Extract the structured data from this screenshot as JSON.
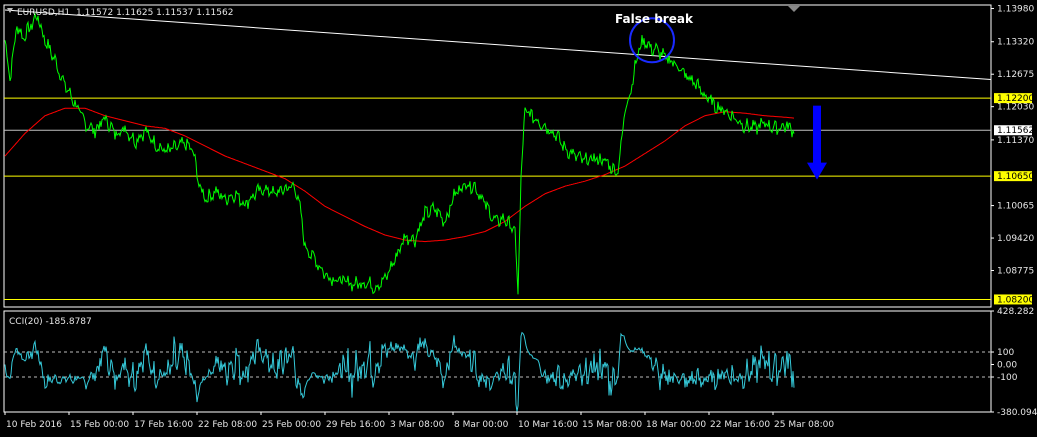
{
  "colors": {
    "background": "#000000",
    "price_line": "#00ff00",
    "moving_average": "#ff0000",
    "trendline": "#ffffff",
    "support_resistance": "#ffff00",
    "current_price_line": "#c0c0c0",
    "cci_line": "#35c9d9",
    "arrow": "#0000ff",
    "circle": "#1a2bff",
    "axis_border": "#ffffff",
    "label_badge_bg": "#ffff00",
    "label_badge_text": "#000000"
  },
  "header": {
    "symbol": "EURUSD,H1",
    "ohlc": "1.11572 1.11625 1.11537 1.11562"
  },
  "annotation": {
    "text": "False break",
    "icon": "circle-highlight",
    "arrow_icon": "down-arrow-icon"
  },
  "chart_data": [
    {
      "type": "line",
      "panel": "price",
      "ylim": [
        1.0805,
        1.1405
      ],
      "ytick_labels": [
        "1.13980",
        "1.13320",
        "1.12675",
        "1.12030",
        "1.11370",
        "1.10065",
        "1.09420",
        "1.08775"
      ],
      "ytick_values": [
        1.1398,
        1.1332,
        1.12675,
        1.1203,
        1.1137,
        1.10065,
        1.0942,
        1.08775
      ],
      "xtick_labels": [
        "10 Feb 2016",
        "15 Feb 00:00",
        "17 Feb 16:00",
        "22 Feb 08:00",
        "25 Feb 00:00",
        "29 Feb 16:00",
        "3 Mar 08:00",
        "8 Mar 00:00",
        "10 Mar 16:00",
        "15 Mar 08:00",
        "18 Mar 00:00",
        "22 Mar 16:00",
        "25 Mar 08:00"
      ],
      "xtick_index": [
        0,
        64,
        128,
        192,
        256,
        320,
        384,
        448,
        512,
        576,
        640,
        704,
        768
      ],
      "n_bars": 790,
      "price_anchors": [
        [
          0,
          1.1335
        ],
        [
          5,
          1.126
        ],
        [
          12,
          1.1365
        ],
        [
          18,
          1.134
        ],
        [
          25,
          1.136
        ],
        [
          32,
          1.1385
        ],
        [
          40,
          1.1335
        ],
        [
          50,
          1.1295
        ],
        [
          60,
          1.1245
        ],
        [
          70,
          1.121
        ],
        [
          80,
          1.117
        ],
        [
          90,
          1.1155
        ],
        [
          100,
          1.118
        ],
        [
          110,
          1.115
        ],
        [
          120,
          1.116
        ],
        [
          130,
          1.1135
        ],
        [
          140,
          1.1155
        ],
        [
          150,
          1.113
        ],
        [
          160,
          1.1115
        ],
        [
          170,
          1.112
        ],
        [
          180,
          1.113
        ],
        [
          188,
          1.1115
        ],
        [
          195,
          1.104
        ],
        [
          202,
          1.102
        ],
        [
          210,
          1.1035
        ],
        [
          220,
          1.102
        ],
        [
          230,
          1.103
        ],
        [
          240,
          1.101
        ],
        [
          250,
          1.103
        ],
        [
          260,
          1.104
        ],
        [
          270,
          1.103
        ],
        [
          280,
          1.104
        ],
        [
          290,
          1.1045
        ],
        [
          296,
          1.099
        ],
        [
          300,
          1.0925
        ],
        [
          310,
          1.09
        ],
        [
          320,
          1.087
        ],
        [
          330,
          1.086
        ],
        [
          340,
          1.0855
        ],
        [
          350,
          1.085
        ],
        [
          360,
          1.0855
        ],
        [
          370,
          1.0845
        ],
        [
          380,
          1.086
        ],
        [
          390,
          1.09
        ],
        [
          400,
          1.0945
        ],
        [
          410,
          1.094
        ],
        [
          420,
          1.099
        ],
        [
          430,
          1.1
        ],
        [
          440,
          1.0975
        ],
        [
          450,
          1.103
        ],
        [
          460,
          1.105
        ],
        [
          470,
          1.1045
        ],
        [
          480,
          1.101
        ],
        [
          490,
          1.0975
        ],
        [
          500,
          1.098
        ],
        [
          510,
          1.0955
        ],
        [
          513,
          1.083
        ],
        [
          516,
          1.106
        ],
        [
          520,
          1.1195
        ],
        [
          530,
          1.118
        ],
        [
          540,
          1.1165
        ],
        [
          550,
          1.115
        ],
        [
          560,
          1.112
        ],
        [
          570,
          1.1105
        ],
        [
          580,
          1.1095
        ],
        [
          590,
          1.11
        ],
        [
          600,
          1.1095
        ],
        [
          612,
          1.1072
        ],
        [
          616,
          1.112
        ],
        [
          620,
          1.12
        ],
        [
          625,
          1.123
        ],
        [
          630,
          1.128
        ],
        [
          635,
          1.1325
        ],
        [
          640,
          1.1335
        ],
        [
          645,
          1.132
        ],
        [
          652,
          1.1315
        ],
        [
          660,
          1.13
        ],
        [
          670,
          1.129
        ],
        [
          680,
          1.1265
        ],
        [
          690,
          1.125
        ],
        [
          700,
          1.1225
        ],
        [
          710,
          1.1205
        ],
        [
          720,
          1.1195
        ],
        [
          730,
          1.118
        ],
        [
          740,
          1.1165
        ],
        [
          750,
          1.116
        ],
        [
          760,
          1.117
        ],
        [
          770,
          1.116
        ],
        [
          780,
          1.1165
        ],
        [
          790,
          1.1156
        ]
      ],
      "moving_average_anchors": [
        [
          0,
          1.1105
        ],
        [
          20,
          1.115
        ],
        [
          40,
          1.1185
        ],
        [
          60,
          1.12
        ],
        [
          80,
          1.12
        ],
        [
          100,
          1.1185
        ],
        [
          120,
          1.1175
        ],
        [
          140,
          1.1165
        ],
        [
          160,
          1.116
        ],
        [
          180,
          1.1145
        ],
        [
          200,
          1.1125
        ],
        [
          220,
          1.1105
        ],
        [
          240,
          1.109
        ],
        [
          260,
          1.1075
        ],
        [
          280,
          1.106
        ],
        [
          300,
          1.1035
        ],
        [
          320,
          1.1005
        ],
        [
          340,
          1.0985
        ],
        [
          360,
          1.0965
        ],
        [
          380,
          1.0948
        ],
        [
          400,
          1.0938
        ],
        [
          420,
          1.0935
        ],
        [
          440,
          1.0938
        ],
        [
          460,
          1.0945
        ],
        [
          480,
          1.0955
        ],
        [
          500,
          1.0975
        ],
        [
          520,
          1.1005
        ],
        [
          540,
          1.103
        ],
        [
          560,
          1.1045
        ],
        [
          580,
          1.1055
        ],
        [
          600,
          1.1068
        ],
        [
          620,
          1.1085
        ],
        [
          640,
          1.111
        ],
        [
          660,
          1.1135
        ],
        [
          680,
          1.1165
        ],
        [
          700,
          1.1185
        ],
        [
          720,
          1.1193
        ],
        [
          740,
          1.119
        ],
        [
          760,
          1.1185
        ],
        [
          780,
          1.1182
        ],
        [
          790,
          1.118
        ]
      ],
      "trendline": {
        "start": [
          0,
          1.1395
        ],
        "end": [
          1000,
          1.1255
        ]
      },
      "horizontal_levels": [
        {
          "value": 1.122,
          "label": "1.12200",
          "kind": "resistance"
        },
        {
          "value": 1.1065,
          "label": "1.10650",
          "kind": "support"
        },
        {
          "value": 1.082,
          "label": "1.08200",
          "kind": "support"
        }
      ],
      "current_price": {
        "value": 1.11562,
        "label": "1.11562"
      },
      "false_break_bar": 647,
      "arrow": {
        "bar": 800,
        "from": 1.1205,
        "to": 1.106
      }
    },
    {
      "type": "line",
      "panel": "oscillator",
      "title": "CCI(20) -185.8787",
      "ylim": [
        -380.0946,
        428.282
      ],
      "ytick_labels": [
        "428.282",
        "100",
        "0.00",
        "-100",
        "-380.0946"
      ],
      "ytick_values": [
        428.282,
        100,
        0,
        -100,
        -380.0946
      ],
      "levels": [
        100,
        -100
      ],
      "last_value": -185.8787
    }
  ]
}
